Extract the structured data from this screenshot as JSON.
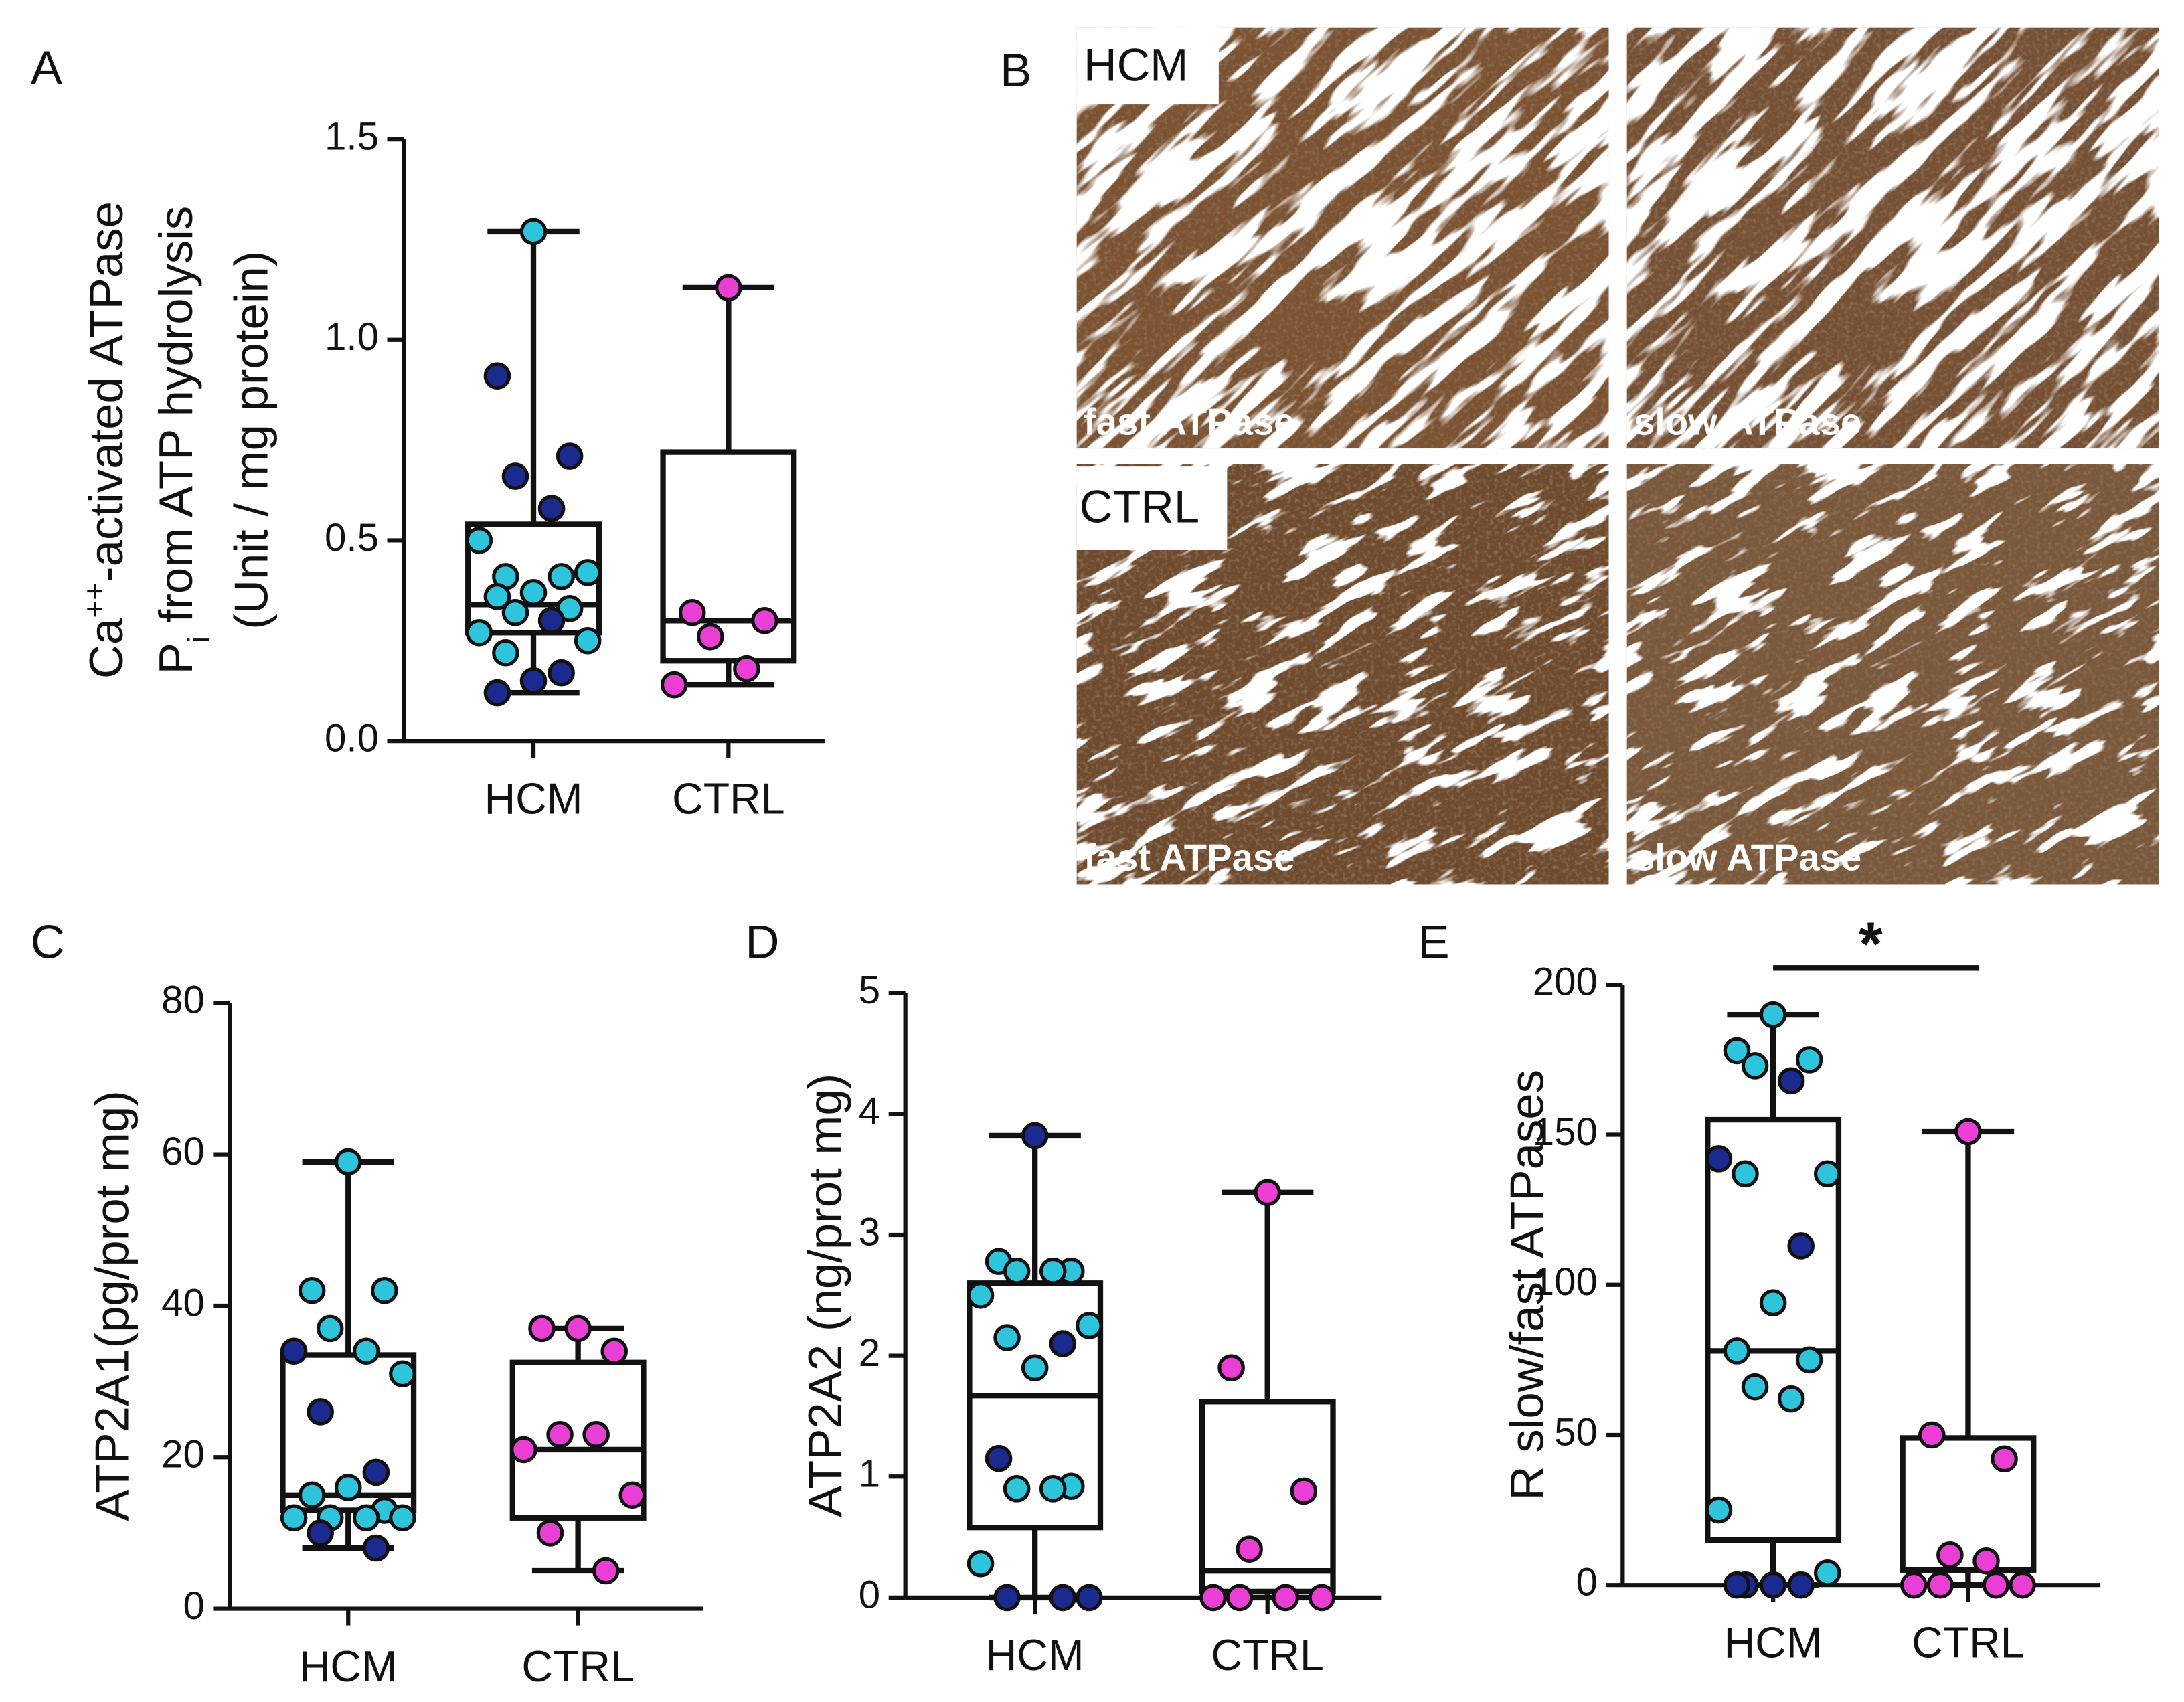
{
  "chart_data": [
    {
      "type": "box",
      "panel": "A",
      "ylabel": [
        [
          {
            "text": "Ca"
          },
          {
            "text": "++",
            "shift": "super"
          },
          {
            "text": "-activated ATPase"
          }
        ],
        [
          {
            "text": "P"
          },
          {
            "text": "i",
            "shift": "sub"
          },
          {
            "text": " from ATP hydrolysis"
          }
        ],
        [
          {
            "text": "(Unit / mg protein)"
          }
        ]
      ],
      "categories": [
        "HCM",
        "CTRL"
      ],
      "ylim": [
        0,
        1.5
      ],
      "yticks": [
        {
          "value": 0,
          "label": "0.0"
        },
        0.5,
        {
          "value": 1,
          "label": "1.0"
        },
        1.5
      ],
      "boxes": [
        {
          "min": 0.12,
          "q1": 0.27,
          "median": 0.34,
          "q3": 0.54,
          "max": 1.27
        },
        {
          "min": 0.14,
          "q1": 0.2,
          "median": 0.3,
          "q3": 0.72,
          "max": 1.13
        }
      ],
      "points": [
        {
          "values": [
            1.27,
            0.91,
            0.71,
            0.66,
            0.58,
            0.5,
            0.42,
            0.41,
            0.41,
            0.37,
            0.36,
            0.33,
            0.32,
            0.3,
            0.27,
            0.25,
            0.22,
            0.17,
            0.15,
            0.12
          ],
          "colors": [
            "#2ec4dc",
            "#1b2a8f",
            "#1b2a8f",
            "#1b2a8f",
            "#1b2a8f",
            "#2ec4dc",
            "#2ec4dc",
            "#2ec4dc",
            "#2ec4dc",
            "#2ec4dc",
            "#2ec4dc",
            "#2ec4dc",
            "#2ec4dc",
            "#1b2a8f",
            "#2ec4dc",
            "#2ec4dc",
            "#2ec4dc",
            "#1b2a8f",
            "#1b2a8f",
            "#1b2a8f"
          ]
        },
        {
          "values": [
            1.13,
            0.32,
            0.3,
            0.26,
            0.18,
            0.14
          ],
          "colors": [
            "#e93fd4",
            "#e93fd4",
            "#e93fd4",
            "#e93fd4",
            "#e93fd4",
            "#e93fd4"
          ]
        }
      ]
    },
    {
      "type": "box",
      "panel": "C",
      "ylabel": [
        [
          {
            "text": "ATP2A1(pg/prot mg)"
          }
        ]
      ],
      "categories": [
        "HCM",
        "CTRL"
      ],
      "ylim": [
        0,
        80
      ],
      "yticks": [
        0,
        20,
        40,
        60,
        80
      ],
      "boxes": [
        {
          "min": 8,
          "q1": 13,
          "median": 15,
          "q3": 33.5,
          "max": 59
        },
        {
          "min": 5,
          "q1": 12,
          "median": 21,
          "q3": 32.5,
          "max": 37
        }
      ],
      "points": [
        {
          "values": [
            59,
            42,
            42,
            37,
            34,
            34,
            31,
            26,
            18,
            16,
            15,
            13,
            12,
            12,
            12,
            12,
            10,
            8
          ],
          "colors": [
            "#2ec4dc",
            "#2ec4dc",
            "#2ec4dc",
            "#2ec4dc",
            "#2ec4dc",
            "#1b2a8f",
            "#2ec4dc",
            "#1b2a8f",
            "#1b2a8f",
            "#2ec4dc",
            "#2ec4dc",
            "#2ec4dc",
            "#2ec4dc",
            "#2ec4dc",
            "#2ec4dc",
            "#2ec4dc",
            "#1b2a8f",
            "#1b2a8f"
          ]
        },
        {
          "values": [
            37,
            37,
            34,
            23,
            23,
            21,
            15,
            10,
            5
          ],
          "colors": [
            "#e93fd4",
            "#e93fd4",
            "#e93fd4",
            "#e93fd4",
            "#e93fd4",
            "#e93fd4",
            "#e93fd4",
            "#e93fd4",
            "#e93fd4"
          ]
        }
      ]
    },
    {
      "type": "box",
      "panel": "D",
      "ylabel": [
        [
          {
            "text": "ATP2A2 (ng/prot mg)"
          }
        ]
      ],
      "categories": [
        "HCM",
        "CTRL"
      ],
      "ylim": [
        0,
        5
      ],
      "yticks": [
        0,
        1,
        2,
        3,
        4,
        5
      ],
      "boxes": [
        {
          "min": 0,
          "q1": 0.58,
          "median": 1.67,
          "q3": 2.6,
          "max": 3.82
        },
        {
          "min": 0,
          "q1": 0.05,
          "median": 0.22,
          "q3": 1.62,
          "max": 3.35
        }
      ],
      "points": [
        {
          "values": [
            3.82,
            2.78,
            2.7,
            2.7,
            2.7,
            2.5,
            2.25,
            2.15,
            2.1,
            1.9,
            1.15,
            0.92,
            0.9,
            0.9,
            0.28,
            0,
            0,
            0
          ],
          "colors": [
            "#1b2a8f",
            "#2ec4dc",
            "#2ec4dc",
            "#2ec4dc",
            "#2ec4dc",
            "#2ec4dc",
            "#2ec4dc",
            "#2ec4dc",
            "#1b2a8f",
            "#2ec4dc",
            "#1b2a8f",
            "#2ec4dc",
            "#2ec4dc",
            "#2ec4dc",
            "#2ec4dc",
            "#1b2a8f",
            "#1b2a8f",
            "#1b2a8f"
          ]
        },
        {
          "values": [
            3.35,
            1.9,
            0.88,
            0.4,
            0,
            0,
            0,
            0
          ],
          "colors": [
            "#e93fd4",
            "#e93fd4",
            "#e93fd4",
            "#e93fd4",
            "#e93fd4",
            "#e93fd4",
            "#e93fd4",
            "#e93fd4"
          ]
        }
      ]
    },
    {
      "type": "box",
      "panel": "E",
      "ylabel": [
        [
          {
            "text": "R slow/fast ATPases"
          }
        ]
      ],
      "categories": [
        "HCM",
        "CTRL"
      ],
      "ylim": [
        0,
        200
      ],
      "yticks": [
        0,
        50,
        100,
        150,
        200
      ],
      "annotation": "*",
      "boxes": [
        {
          "min": 0,
          "q1": 15,
          "median": 78,
          "q3": 155,
          "max": 190
        },
        {
          "min": 0,
          "q1": 5,
          "median": 5,
          "q3": 49,
          "max": 151
        }
      ],
      "points": [
        {
          "values": [
            190,
            178,
            175,
            173,
            168,
            142,
            137,
            137,
            113,
            94,
            78,
            75,
            66,
            62,
            25,
            4,
            0,
            0,
            0,
            0
          ],
          "colors": [
            "#2ec4dc",
            "#2ec4dc",
            "#2ec4dc",
            "#2ec4dc",
            "#1b2a8f",
            "#1b2a8f",
            "#2ec4dc",
            "#2ec4dc",
            "#1b2a8f",
            "#2ec4dc",
            "#2ec4dc",
            "#2ec4dc",
            "#2ec4dc",
            "#2ec4dc",
            "#2ec4dc",
            "#2ec4dc",
            "#1b2a8f",
            "#1b2a8f",
            "#1b2a8f",
            "#1b2a8f"
          ]
        },
        {
          "values": [
            151,
            50,
            42,
            10,
            8,
            0,
            0,
            0,
            0
          ],
          "colors": [
            "#e93fd4",
            "#e93fd4",
            "#e93fd4",
            "#e93fd4",
            "#e93fd4",
            "#e93fd4",
            "#e93fd4",
            "#e93fd4",
            "#e93fd4"
          ]
        }
      ]
    }
  ],
  "micrographs": {
    "panel": "B",
    "rows": [
      {
        "label": "HCM",
        "images": [
          "fast ATPase",
          "slow ATPase"
        ]
      },
      {
        "label": "CTRL",
        "images": [
          "fast ATPase",
          "slow ATPase"
        ]
      }
    ]
  }
}
